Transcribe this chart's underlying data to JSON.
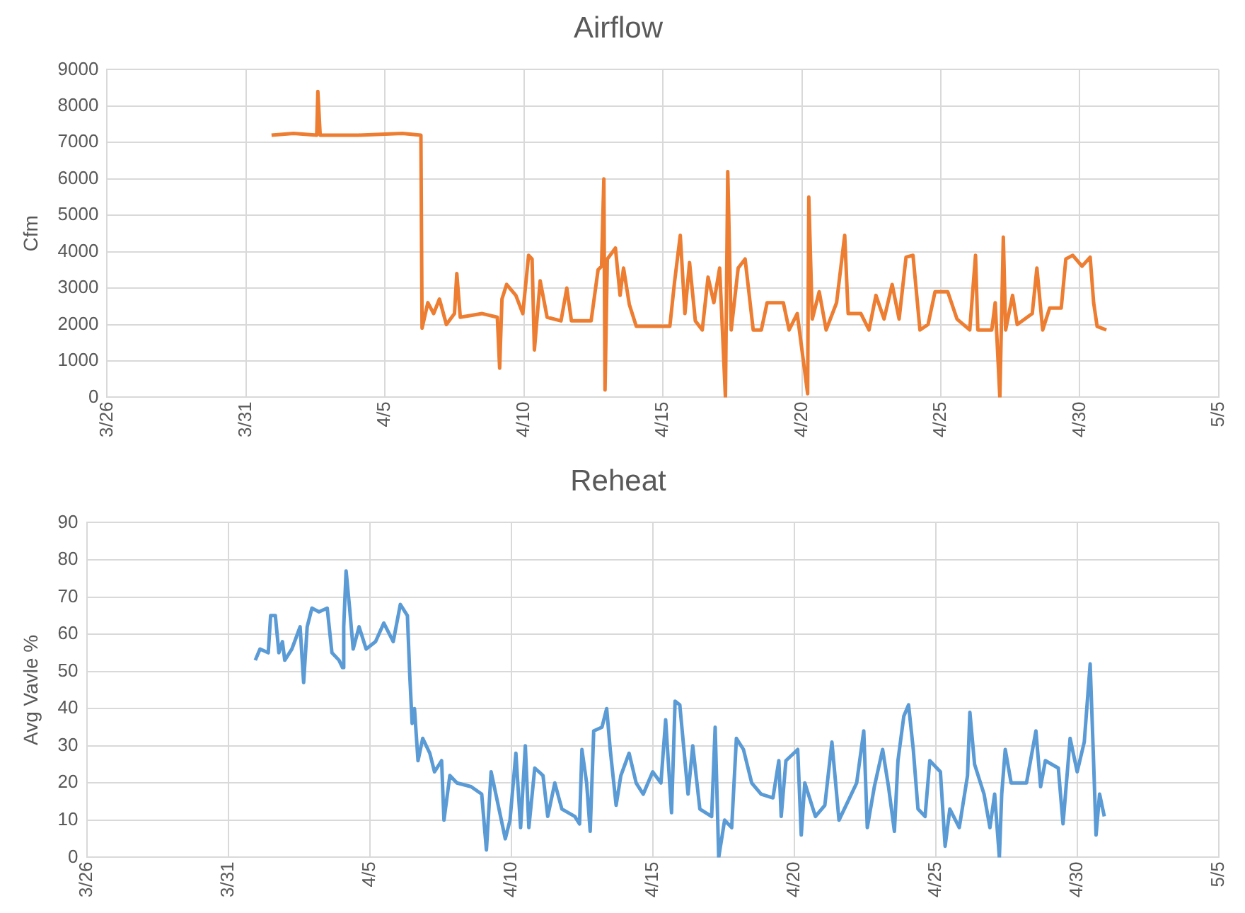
{
  "chart_data": [
    {
      "type": "line",
      "title": "Airflow",
      "ylabel": "Cfm",
      "grid": true,
      "legend": false,
      "marker": "none",
      "line_style": "solid",
      "xlim": [
        "--03-26",
        "--05-05"
      ],
      "xticks": [
        {
          "value": "--03-26",
          "label": "3/26"
        },
        {
          "value": "--03-31",
          "label": "3/31"
        },
        {
          "value": "--04-05",
          "label": "4/5"
        },
        {
          "value": "--04-10",
          "label": "4/10"
        },
        {
          "value": "--04-15",
          "label": "4/15"
        },
        {
          "value": "--04-20",
          "label": "4/20"
        },
        {
          "value": "--04-25",
          "label": "4/25"
        },
        {
          "value": "--04-30",
          "label": "4/30"
        },
        {
          "value": "--05-05",
          "label": "5/5"
        }
      ],
      "ylim": [
        0,
        9000
      ],
      "yticks": [
        0,
        1000,
        2000,
        3000,
        4000,
        5000,
        6000,
        7000,
        8000,
        9000
      ],
      "series": [
        {
          "color": "#ed7d31",
          "x": [
            "--03-31T22:00",
            "--04-01T17:00",
            "--04-02T13:00",
            "--04-02T14:00",
            "--04-02T16:00",
            "--04-04T01:00",
            "--04-05T15:00",
            "--04-06T07:00",
            "--04-06T08:00",
            "--04-06T13:00",
            "--04-06T18:00",
            "--04-06T23:00",
            "--04-07T05:00",
            "--04-07T12:00",
            "--04-07T14:00",
            "--04-07T17:00",
            "--04-08T12:00",
            "--04-09T01:00",
            "--04-09T03:00",
            "--04-09T05:00",
            "--04-09T09:00",
            "--04-09T17:00",
            "--04-09T23:00",
            "--04-10T04:00",
            "--04-10T07:00",
            "--04-10T09:00",
            "--04-10T14:00",
            "--04-10T20:00",
            "--04-11T08:00",
            "--04-11T13:00",
            "--04-11T17:00",
            "--04-12T10:00",
            "--04-12T16:00",
            "--04-12T19:00",
            "--04-12T21:00",
            "--04-12T22:00",
            "--04-13T00:00",
            "--04-13T07:00",
            "--04-13T11:00",
            "--04-13T14:00",
            "--04-13T19:00",
            "--04-14T01:00",
            "--04-15T06:00",
            "--04-15T10:00",
            "--04-15T15:00",
            "--04-15T19:00",
            "--04-15T23:00",
            "--04-16T04:00",
            "--04-16T10:00",
            "--04-16T15:00",
            "--04-16T20:00",
            "--04-17T01:00",
            "--04-17T06:00",
            "--04-17T08:00",
            "--04-17T11:00",
            "--04-17T17:00",
            "--04-17T23:00",
            "--04-18T06:00",
            "--04-18T13:00",
            "--04-18T18:00",
            "--04-19T08:00",
            "--04-19T13:00",
            "--04-19T20:00",
            "--04-20T05:00",
            "--04-20T06:00",
            "--04-20T09:00",
            "--04-20T15:00",
            "--04-20T21:00",
            "--04-21T06:00",
            "--04-21T13:00",
            "--04-21T16:00",
            "--04-22T03:00",
            "--04-22T10:00",
            "--04-22T16:00",
            "--04-22T23:00",
            "--04-23T06:00",
            "--04-23T12:00",
            "--04-23T18:00",
            "--04-24T00:00",
            "--04-24T06:00",
            "--04-24T13:00",
            "--04-24T19:00",
            "--04-25T06:00",
            "--04-25T14:00",
            "--04-26T01:00",
            "--04-26T06:00",
            "--04-26T08:00",
            "--04-26T20:00",
            "--04-26T23:00",
            "--04-27T03:00",
            "--04-27T06:00",
            "--04-27T08:00",
            "--04-27T14:00",
            "--04-27T18:00",
            "--04-28T07:00",
            "--04-28T11:00",
            "--04-28T16:00",
            "--04-28T22:00",
            "--04-29T08:00",
            "--04-29T12:00",
            "--04-29T18:00",
            "--04-30T02:00",
            "--04-30T09:00",
            "--04-30T12:00",
            "--04-30T15:00",
            "--04-30T23:00"
          ],
          "values": [
            7200,
            7250,
            7200,
            8400,
            7200,
            7200,
            7250,
            7200,
            1900,
            2600,
            2300,
            2700,
            2000,
            2300,
            3400,
            2200,
            2300,
            2200,
            800,
            2700,
            3100,
            2800,
            2300,
            3900,
            3800,
            1300,
            3200,
            2200,
            2100,
            3000,
            2100,
            2100,
            3500,
            3600,
            6000,
            200,
            3800,
            4100,
            2800,
            3550,
            2550,
            1950,
            1950,
            3150,
            4450,
            2300,
            3700,
            2100,
            1850,
            3300,
            2600,
            3550,
            0,
            6200,
            1850,
            3550,
            3800,
            1850,
            1850,
            2600,
            2600,
            1850,
            2300,
            100,
            5500,
            2150,
            2900,
            1850,
            2600,
            4450,
            2300,
            2300,
            1850,
            2800,
            2150,
            3100,
            2150,
            3850,
            3900,
            1850,
            2000,
            2900,
            2900,
            2150,
            1850,
            3900,
            1850,
            1850,
            2600,
            0,
            4400,
            1850,
            2800,
            2000,
            2300,
            3550,
            1850,
            2450,
            2450,
            3800,
            3900,
            3600,
            3850,
            2600,
            1950,
            1850
          ]
        }
      ]
    },
    {
      "type": "line",
      "title": "Reheat",
      "ylabel": "Avg Vavle %",
      "grid": true,
      "legend": false,
      "marker": "none",
      "line_style": "solid",
      "xlim": [
        "--03-26",
        "--05-05"
      ],
      "xticks": [
        {
          "value": "--03-26",
          "label": "3/26"
        },
        {
          "value": "--03-31",
          "label": "3/31"
        },
        {
          "value": "--04-05",
          "label": "4/5"
        },
        {
          "value": "--04-10",
          "label": "4/10"
        },
        {
          "value": "--04-15",
          "label": "4/15"
        },
        {
          "value": "--04-20",
          "label": "4/20"
        },
        {
          "value": "--04-25",
          "label": "4/25"
        },
        {
          "value": "--04-30",
          "label": "4/30"
        },
        {
          "value": "--05-05",
          "label": "5/5"
        }
      ],
      "ylim": [
        0,
        90
      ],
      "yticks": [
        0,
        10,
        20,
        30,
        40,
        50,
        60,
        70,
        80,
        90
      ],
      "series": [
        {
          "color": "#5b9bd5",
          "x": [
            "--03-31T23:00",
            "--04-01T03:00",
            "--04-01T10:00",
            "--04-01T12:00",
            "--04-01T16:00",
            "--04-01T19:00",
            "--04-01T22:00",
            "--04-02T00:00",
            "--04-02T06:00",
            "--04-02T13:00",
            "--04-02T16:00",
            "--04-02T19:00",
            "--04-02T23:00",
            "--04-03T05:00",
            "--04-03T12:00",
            "--04-03T16:00",
            "--04-03T22:00",
            "--04-04T01:00",
            "--04-04T02:00",
            "--04-04T04:00",
            "--04-04T07:00",
            "--04-04T10:00",
            "--04-04T15:00",
            "--04-04T21:00",
            "--04-05T05:00",
            "--04-05T12:00",
            "--04-05T20:00",
            "--04-06T02:00",
            "--04-06T08:00",
            "--04-06T10:00",
            "--04-06T12:00",
            "--04-06T14:00",
            "--04-06T17:00",
            "--04-06T21:00",
            "--04-07T03:00",
            "--04-07T07:00",
            "--04-07T13:00",
            "--04-07T15:00",
            "--04-07T20:00",
            "--04-08T02:00",
            "--04-08T14:00",
            "--04-08T23:00",
            "--04-09T03:00",
            "--04-09T07:00",
            "--04-09T13:00",
            "--04-09T19:00",
            "--04-09T23:00",
            "--04-10T04:00",
            "--04-10T08:00",
            "--04-10T12:00",
            "--04-10T15:00",
            "--04-10T20:00",
            "--04-11T03:00",
            "--04-11T07:00",
            "--04-11T13:00",
            "--04-11T19:00",
            "--04-12T06:00",
            "--04-12T10:00",
            "--04-12T12:00",
            "--04-12T16:00",
            "--04-12T19:00",
            "--04-12T22:00",
            "--04-13T05:00",
            "--04-13T09:00",
            "--04-13T12:00",
            "--04-13T17:00",
            "--04-13T21:00",
            "--04-14T04:00",
            "--04-14T10:00",
            "--04-14T16:00",
            "--04-15T00:00",
            "--04-15T07:00",
            "--04-15T11:00",
            "--04-15T16:00",
            "--04-15T19:00",
            "--04-15T23:00",
            "--04-16T06:00",
            "--04-16T10:00",
            "--04-16T16:00",
            "--04-17T02:00",
            "--04-17T05:00",
            "--04-17T08:00",
            "--04-17T13:00",
            "--04-17T19:00",
            "--04-17T23:00",
            "--04-18T05:00",
            "--04-18T12:00",
            "--04-18T20:00",
            "--04-19T06:00",
            "--04-19T11:00",
            "--04-19T13:00",
            "--04-19T17:00",
            "--04-20T03:00",
            "--04-20T06:00",
            "--04-20T09:00",
            "--04-20T18:00",
            "--04-21T02:00",
            "--04-21T08:00",
            "--04-21T14:00",
            "--04-21T23:00",
            "--04-22T05:00",
            "--04-22T11:00",
            "--04-22T14:00",
            "--04-22T20:00",
            "--04-23T03:00",
            "--04-23T08:00",
            "--04-23T13:00",
            "--04-23T16:00",
            "--04-23T21:00",
            "--04-24T01:00",
            "--04-24T05:00",
            "--04-24T09:00",
            "--04-24T15:00",
            "--04-24T19:00",
            "--04-25T04:00",
            "--04-25T08:00",
            "--04-25T12:00",
            "--04-25T20:00",
            "--04-26T03:00",
            "--04-26T05:00",
            "--04-26T09:00",
            "--04-26T17:00",
            "--04-26T22:00",
            "--04-27T02:00",
            "--04-27T06:00",
            "--04-27T08:00",
            "--04-27T11:00",
            "--04-27T16:00",
            "--04-28T05:00",
            "--04-28T13:00",
            "--04-28T17:00",
            "--04-28T21:00",
            "--04-29T08:00",
            "--04-29T12:00",
            "--04-29T18:00",
            "--04-30T00:00",
            "--04-30T06:00",
            "--04-30T11:00",
            "--04-30T14:00",
            "--04-30T16:00",
            "--04-30T19:00",
            "--04-30T23:00"
          ],
          "values": [
            53,
            56,
            55,
            65,
            65,
            55,
            58,
            53,
            56,
            62,
            47,
            62,
            67,
            66,
            67,
            55,
            53,
            51,
            62,
            77,
            67,
            56,
            62,
            56,
            58,
            63,
            58,
            68,
            65,
            49,
            36,
            40,
            26,
            32,
            28,
            23,
            26,
            10,
            22,
            20,
            19,
            17,
            2,
            23,
            14,
            5,
            10,
            28,
            8,
            30,
            8,
            24,
            22,
            11,
            20,
            13,
            11,
            9,
            29,
            20,
            7,
            34,
            35,
            40,
            29,
            14,
            22,
            28,
            20,
            17,
            23,
            20,
            37,
            12,
            42,
            41,
            17,
            30,
            13,
            11,
            35,
            0,
            10,
            8,
            32,
            29,
            20,
            17,
            16,
            26,
            11,
            26,
            29,
            6,
            20,
            11,
            14,
            31,
            10,
            16,
            20,
            34,
            8,
            19,
            29,
            19,
            7,
            26,
            38,
            41,
            29,
            13,
            11,
            26,
            23,
            3,
            13,
            8,
            22,
            39,
            25,
            17,
            8,
            17,
            0,
            17,
            29,
            20,
            20,
            34,
            19,
            26,
            24,
            9,
            32,
            23,
            31,
            52,
            25,
            6,
            17,
            11
          ]
        }
      ]
    }
  ]
}
